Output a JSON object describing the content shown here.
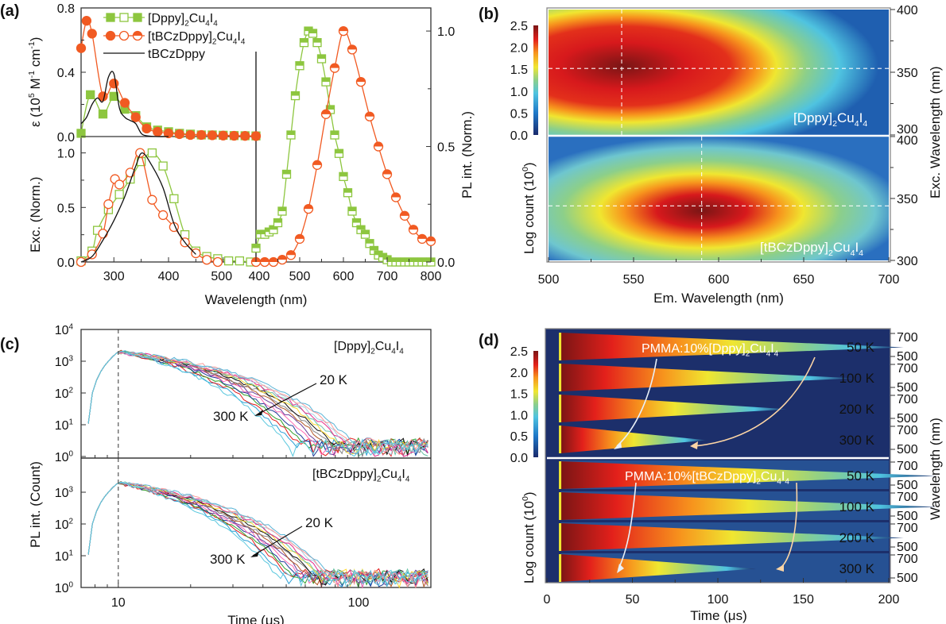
{
  "chart_data": [
    {
      "panel": "(a)",
      "type": "line",
      "subplots": [
        {
          "name": "absorption",
          "ylabel": "ε (10^5 M^-1 cm^-1)",
          "ylim": [
            0,
            0.8
          ],
          "yticks": [
            "0.0",
            "0.4",
            "0.8"
          ],
          "xlim": [
            240,
            560
          ],
          "series": [
            {
              "name": "[Dppy]2Cu4I4",
              "color": "#8dc63f",
              "marker": "square-filled",
              "x": [
                240,
                257,
                280,
                300,
                320,
                340,
                360,
                380,
                400,
                420,
                440,
                460,
                480,
                500,
                520,
                540,
                560
              ],
              "y": [
                0.02,
                0.26,
                0.14,
                0.25,
                0.17,
                0.13,
                0.06,
                0.04,
                0.03,
                0.02,
                0.015,
                0.01,
                0.01,
                0.008,
                0.006,
                0.005,
                0.004
              ]
            },
            {
              "name": "[tBCzDppy]2Cu4I4",
              "color": "#f15a22",
              "marker": "circle-filled",
              "x": [
                240,
                250,
                260,
                280,
                300,
                320,
                340,
                360,
                380,
                400,
                420,
                440,
                460,
                480,
                500,
                520,
                540,
                560
              ],
              "y": [
                0.55,
                0.72,
                0.64,
                0.25,
                0.33,
                0.21,
                0.12,
                0.05,
                0.03,
                0.02,
                0.015,
                0.01,
                0.01,
                0.008,
                0.006,
                0.005,
                0.004,
                0.003
              ]
            },
            {
              "name": "tBCzDppy",
              "color": "#111111",
              "marker": "none",
              "x": [
                240,
                250,
                260,
                270,
                280,
                290,
                300,
                310,
                320,
                330,
                340,
                350,
                360,
                380,
                400
              ],
              "y": [
                0.08,
                0.12,
                0.2,
                0.24,
                0.22,
                0.37,
                0.39,
                0.18,
                0.12,
                0.1,
                0.08,
                0.02,
                0.005,
                0.0,
                0.0
              ]
            }
          ]
        },
        {
          "name": "excitation",
          "ylabel": "Exc. (Norm.)",
          "ylim": [
            0,
            1.15
          ],
          "yticks": [
            "0.0",
            "0.5",
            "1.0"
          ],
          "xlim": [
            240,
            560
          ],
          "xticks": [
            "300",
            "400",
            "500"
          ],
          "series": [
            {
              "name": "[Dppy]2Cu4I4",
              "color": "#8dc63f",
              "marker": "square-open",
              "x": [
                240,
                260,
                270,
                290,
                310,
                330,
                350,
                370,
                390,
                410,
                430,
                450,
                470,
                490,
                510,
                530,
                550
              ],
              "y": [
                0.01,
                0.1,
                0.29,
                0.48,
                0.62,
                0.76,
                0.92,
                1.0,
                0.88,
                0.58,
                0.25,
                0.1,
                0.05,
                0.03,
                0.01,
                0.01,
                0.0
              ]
            },
            {
              "name": "[tBCzDppy]2Cu4I4",
              "color": "#f15a22",
              "marker": "circle-open",
              "x": [
                240,
                260,
                280,
                290,
                302,
                310,
                330,
                348,
                370,
                390,
                410,
                430,
                450,
                470,
                490
              ],
              "y": [
                0.0,
                0.07,
                0.26,
                0.53,
                0.76,
                0.71,
                0.82,
                1.0,
                0.57,
                0.43,
                0.32,
                0.18,
                0.08,
                0.02,
                0.0
              ]
            },
            {
              "name": "tBCzDppy",
              "color": "#111111",
              "marker": "none",
              "x": [
                240,
                260,
                280,
                300,
                320,
                340,
                352,
                370,
                390,
                410,
                430,
                450
              ],
              "y": [
                0.0,
                0.05,
                0.2,
                0.38,
                0.6,
                0.88,
                1.0,
                0.88,
                0.68,
                0.35,
                0.18,
                0.07
              ]
            }
          ]
        },
        {
          "name": "PL",
          "ylabel": "PL int. (Norm.)",
          "ylim": [
            0,
            1.1
          ],
          "yticks": [
            "0.0",
            "0.5",
            "1.0"
          ],
          "xlim": [
            400,
            800
          ],
          "xticks": [
            "400",
            "500",
            "600",
            "700",
            "800"
          ],
          "xlabel": "Wavelength (nm)",
          "series": [
            {
              "name": "[Dppy]2Cu4I4",
              "color": "#8dc63f",
              "marker": "square-half",
              "x": [
                400,
                410,
                420,
                430,
                440,
                450,
                460,
                470,
                480,
                490,
                500,
                510,
                520,
                530,
                540,
                550,
                560,
                570,
                580,
                590,
                600,
                610,
                620,
                630,
                640,
                650,
                660,
                670,
                680,
                690,
                700,
                710,
                720,
                730,
                740,
                750,
                760,
                770,
                780,
                790,
                800
              ],
              "y": [
                0.06,
                0.12,
                0.12,
                0.13,
                0.14,
                0.17,
                0.22,
                0.38,
                0.55,
                0.72,
                0.85,
                0.95,
                1.0,
                0.99,
                0.95,
                0.88,
                0.78,
                0.66,
                0.55,
                0.47,
                0.37,
                0.3,
                0.22,
                0.17,
                0.14,
                0.12,
                0.08,
                0.05,
                0.03,
                0.02,
                0.01,
                0.0,
                0.0,
                0.0,
                0.0,
                0.0,
                0.0,
                0.0,
                0.0,
                0.0,
                0.0
              ]
            },
            {
              "name": "[tBCzDppy]2Cu4I4",
              "color": "#f15a22",
              "marker": "circle-half",
              "x": [
                400,
                420,
                440,
                460,
                480,
                500,
                520,
                540,
                560,
                580,
                600,
                620,
                640,
                660,
                680,
                700,
                720,
                740,
                760,
                780,
                800
              ],
              "y": [
                0.0,
                0.0,
                0.0,
                0.01,
                0.03,
                0.1,
                0.23,
                0.42,
                0.64,
                0.84,
                1.0,
                0.92,
                0.78,
                0.63,
                0.5,
                0.38,
                0.28,
                0.2,
                0.14,
                0.1,
                0.09
              ]
            }
          ]
        }
      ],
      "legend": [
        "[Dppy]2Cu4I4",
        "[tBCzDppy]2Cu4I4",
        "tBCzDppy"
      ],
      "legend_position": "top-left"
    },
    {
      "panel": "(b)",
      "type": "heatmap",
      "xlabel": "Em. Wavelength (nm)",
      "xlim": [
        500,
        700
      ],
      "xticks": [
        "500",
        "550",
        "600",
        "650",
        "700"
      ],
      "ylabel_right": "Exc. Wavelength (nm)",
      "ylim": [
        300,
        400
      ],
      "yticks_right": [
        "300",
        "350",
        "400"
      ],
      "colorbar": {
        "label": "Log count (10^0)",
        "range": [
          0,
          2.5
        ],
        "ticks": [
          "0.0",
          "0.5",
          "1.0",
          "1.5",
          "2.0",
          "2.5"
        ]
      },
      "maps": [
        {
          "name": "[Dppy]2Cu4I4",
          "peak_em_nm": 543,
          "peak_exc_nm": 353,
          "max_log": 2.5
        },
        {
          "name": "[tBCzDppy]2Cu4I4",
          "peak_em_nm": 590,
          "peak_exc_nm": 344,
          "max_log": 2.4
        }
      ]
    },
    {
      "panel": "(c)",
      "type": "line",
      "xlabel": "Time (μs)",
      "xscale": "log",
      "xlim": [
        7,
        200
      ],
      "xticks": [
        "10",
        "100"
      ],
      "ylabel": "PL int. (Count)",
      "yscale": "log",
      "ylim": [
        1,
        10000
      ],
      "yticks": [
        "10^0",
        "10^1",
        "10^2",
        "10^3",
        "10^4"
      ],
      "marker_line_x": 10,
      "subplots": [
        {
          "name": "[Dppy]2Cu4I4",
          "annotation_from": "20 K",
          "annotation_to": "300 K",
          "decay_end_us_20K": 100,
          "decay_end_us_300K": 55
        },
        {
          "name": "[tBCzDppy]2Cu4I4",
          "annotation_from": "20 K",
          "annotation_to": "300 K",
          "decay_end_us_20K": 80,
          "decay_end_us_300K": 50
        }
      ],
      "peak_count": 2000
    },
    {
      "panel": "(d)",
      "type": "heatmap",
      "xlabel": "Time (μs)",
      "xlim": [
        0,
        200
      ],
      "xticks": [
        "0",
        "50",
        "100",
        "150",
        "200"
      ],
      "ylabel_right": "Wavelength (nm)",
      "yticks_right": [
        "500",
        "700"
      ],
      "colorbar": {
        "label": "Log count (10^0)",
        "range": [
          0,
          2.5
        ],
        "ticks": [
          "0.0",
          "0.5",
          "1.0",
          "1.5",
          "2.0",
          "2.5"
        ]
      },
      "groups": [
        {
          "name": "PMMA:10%[Dppy]2Cu4I4",
          "temperatures": [
            "50 K",
            "100 K",
            "200 K",
            "300 K"
          ],
          "decay_extent": [
            0.9,
            0.75,
            0.55,
            0.3
          ]
        },
        {
          "name": "PMMA:10%[tBCzDppy]2Cu4I4",
          "temperatures": [
            "50 K",
            "100 K",
            "200 K",
            "300 K"
          ],
          "decay_extent": [
            1.0,
            1.0,
            0.9,
            0.45
          ]
        }
      ]
    }
  ],
  "labels": {
    "a": "(a)",
    "b": "(b)",
    "c": "(c)",
    "d": "(d)",
    "legend1": "[Dppy]",
    "legend2": "[tBCzDppy]",
    "legend3": "tBCzDppy",
    "eps_label": "ε (10",
    "exc_label": "Exc. (Norm.)",
    "pl_label": "PL int. (Norm.)",
    "wl_label": "Wavelength (nm)",
    "logcount": "Log count (10",
    "em_wl": "Em. Wavelength (nm)",
    "exc_wl": "Exc. Wavelength (nm)",
    "dppy": "[Dppy]",
    "tbcz": "[tBCzDppy]",
    "plcount": "PL int. (Count)",
    "time": "Time (",
    "k20": "20 K",
    "k300": "300 K",
    "pmma1": "PMMA:10%[Dppy]",
    "pmma2": "PMMA:10%[tBCzDppy]",
    "wl_d": "Wavelength (nm)"
  }
}
